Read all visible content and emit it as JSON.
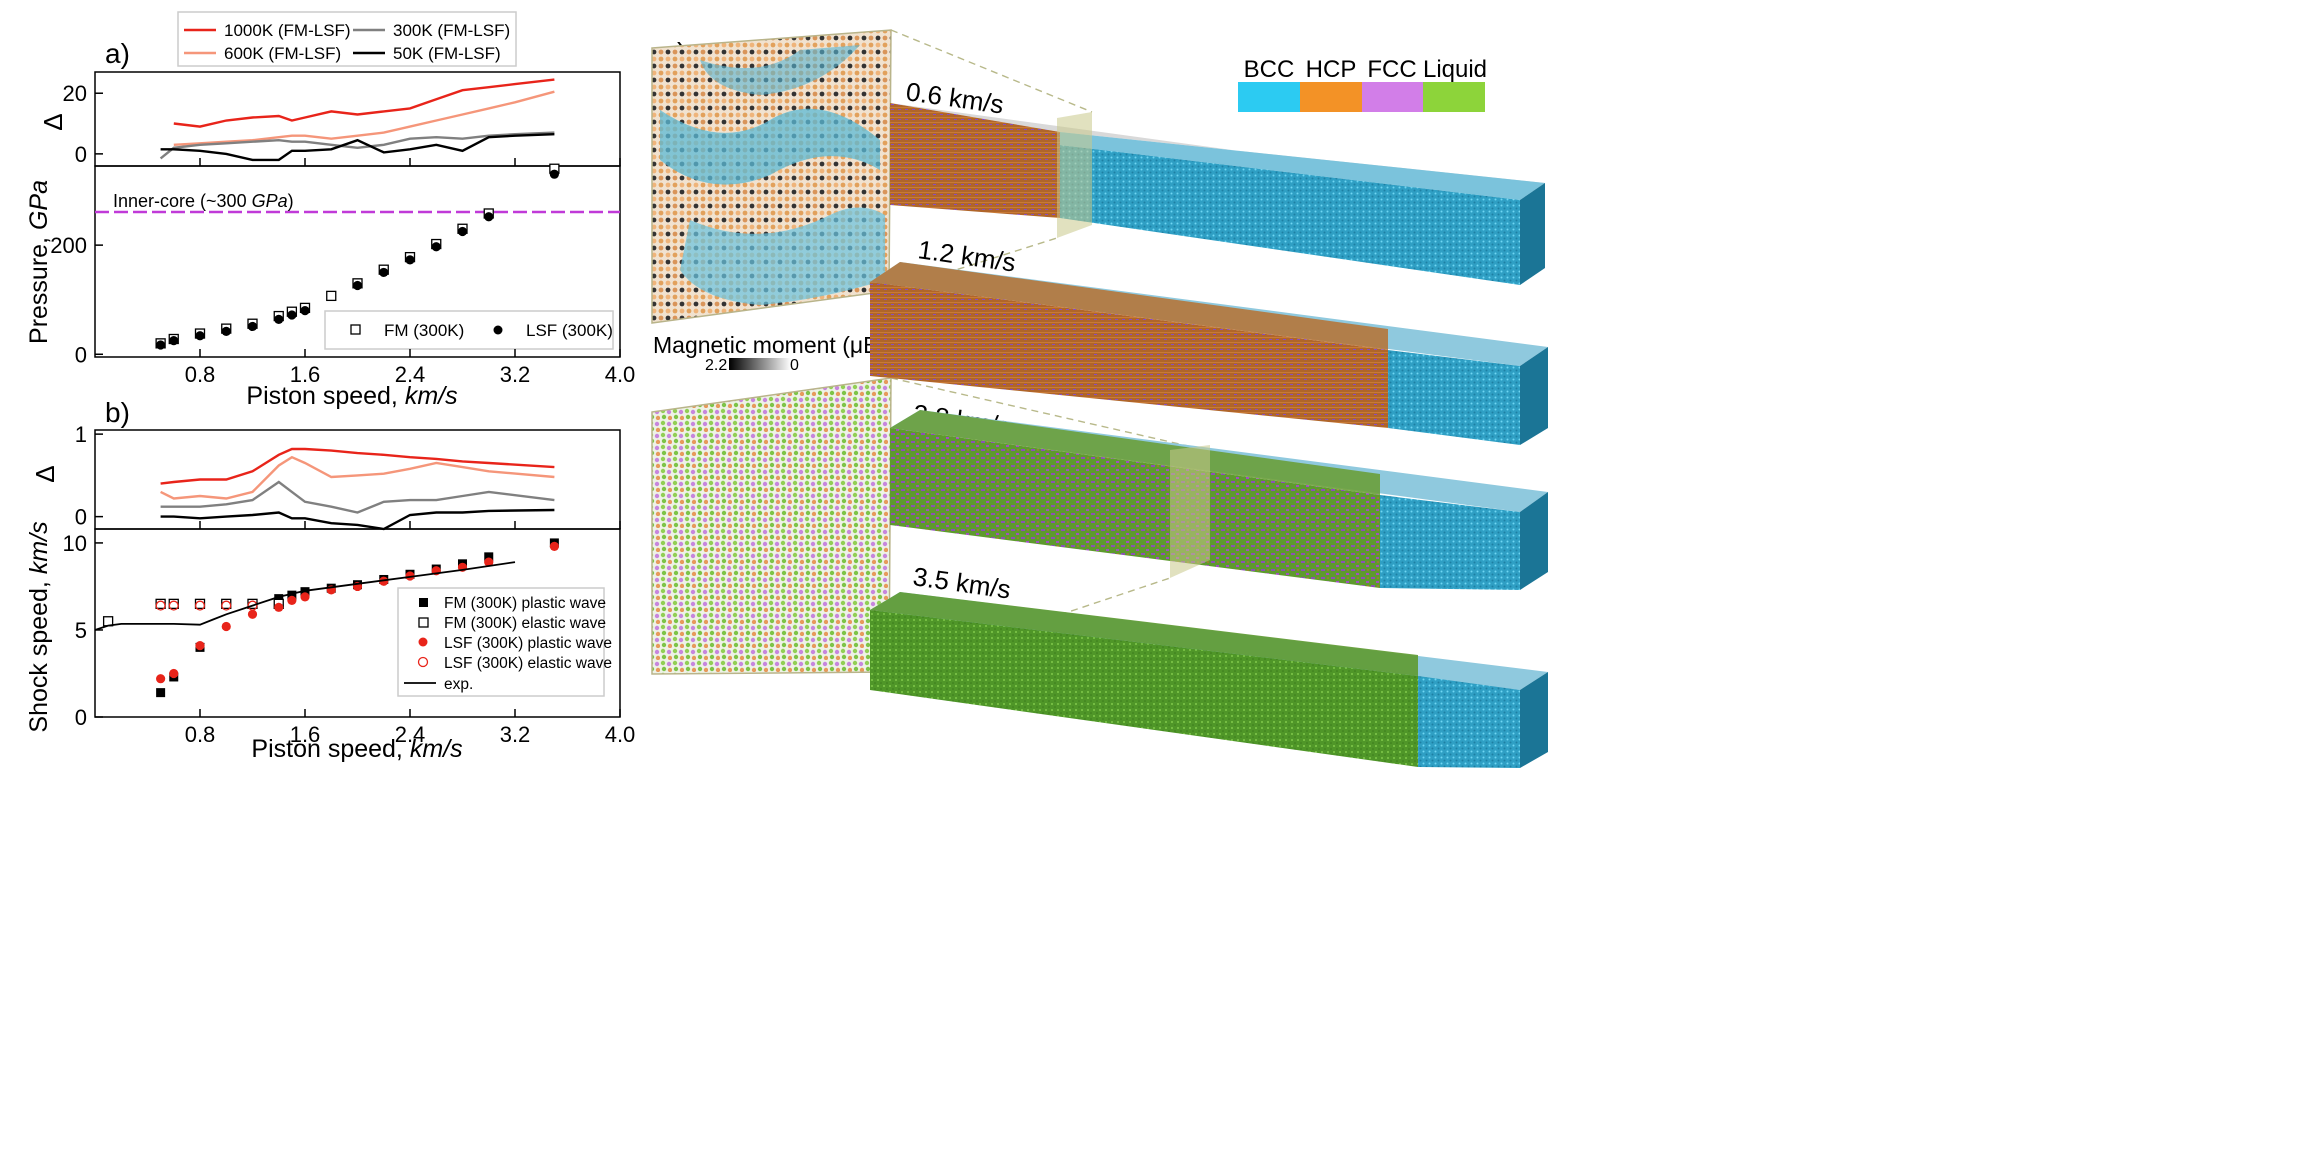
{
  "figure": {
    "panel_labels": {
      "a": "a)",
      "b": "b)",
      "c": "c)"
    }
  },
  "chart_data": [
    {
      "type": "line",
      "panel": "a-top",
      "ylabel": "Δ",
      "xlim": [
        0.0,
        4.0
      ],
      "ylim": [
        -4,
        27
      ],
      "yticks": [
        0,
        20
      ],
      "legend": {
        "placement": "above",
        "entries": [
          "1000K (FM-LSF)",
          "600K (FM-LSF)",
          "300K (FM-LSF)",
          "50K (FM-LSF)"
        ]
      },
      "colors": {
        "1000K (FM-LSF)": "#e8241a",
        "600K (FM-LSF)": "#f5967a",
        "300K (FM-LSF)": "#808080",
        "50K (FM-LSF)": "#000000"
      },
      "x": [
        0.5,
        0.6,
        0.8,
        1.0,
        1.2,
        1.4,
        1.5,
        1.6,
        1.8,
        2.0,
        2.2,
        2.4,
        2.6,
        2.8,
        3.0,
        3.2,
        3.5
      ],
      "series": [
        {
          "name": "1000K (FM-LSF)",
          "values": [
            null,
            10,
            9,
            11,
            12,
            12.5,
            11,
            12,
            14,
            13,
            14,
            15,
            18,
            21,
            22,
            23,
            24.5
          ]
        },
        {
          "name": "600K (FM-LSF)",
          "values": [
            null,
            3,
            3.5,
            4,
            4.5,
            5.5,
            6,
            6,
            5,
            6,
            7,
            9,
            11,
            13,
            15,
            17,
            20.5
          ]
        },
        {
          "name": "300K (FM-LSF)",
          "values": [
            -1.5,
            2,
            3,
            3.5,
            4,
            4.5,
            4,
            4,
            3,
            2,
            3,
            5,
            5.5,
            5,
            6,
            6.5,
            7
          ]
        },
        {
          "name": "50K (FM-LSF)",
          "values": [
            1.5,
            1.5,
            1,
            0,
            -2,
            -2,
            1,
            1,
            1.5,
            4.5,
            0.5,
            1.5,
            3,
            1,
            5.5,
            6,
            6.5
          ]
        }
      ]
    },
    {
      "type": "scatter",
      "panel": "a-bottom",
      "xlabel_text": "Piston speed, ",
      "xlabel_unit": "km/s",
      "ylabel_text": "Pressure, ",
      "ylabel_unit": "GPa",
      "xlim": [
        0.0,
        4.0
      ],
      "ylim": [
        -5,
        345
      ],
      "xticks": [
        0.8,
        1.6,
        2.4,
        3.2,
        4.0
      ],
      "yticks": [
        0,
        200
      ],
      "reference_line": {
        "y": 300,
        "label_text": "Inner-core (~300 ",
        "label_unit": "GPa",
        "label_close": ")",
        "color": "#c03ad8"
      },
      "legend": {
        "placement": "bottom-right",
        "entries": [
          "FM (300K)",
          "LSF (300K)"
        ]
      },
      "x": [
        0.5,
        0.6,
        0.8,
        1.0,
        1.2,
        1.4,
        1.5,
        1.6,
        1.8,
        2.0,
        2.2,
        2.4,
        2.6,
        2.8,
        3.0,
        3.5
      ],
      "series": [
        {
          "name": "FM (300K)",
          "marker": "open-square",
          "values": [
            20,
            28,
            38,
            47,
            56,
            70,
            78,
            85,
            107,
            130,
            155,
            178,
            202,
            230,
            258,
            340
          ]
        },
        {
          "name": "LSF (300K)",
          "marker": "filled-circle",
          "values": [
            17,
            25,
            34,
            42,
            51,
            64,
            72,
            80,
            null,
            126,
            150,
            173,
            197,
            225,
            252,
            330
          ]
        }
      ]
    },
    {
      "type": "line",
      "panel": "b-top",
      "ylabel": "Δ",
      "xlim": [
        0.0,
        4.0
      ],
      "ylim": [
        -0.15,
        1.05
      ],
      "yticks": [
        0,
        1
      ],
      "x": [
        0.5,
        0.6,
        0.8,
        1.0,
        1.2,
        1.4,
        1.5,
        1.6,
        1.8,
        2.0,
        2.2,
        2.4,
        2.6,
        2.8,
        3.0,
        3.5
      ],
      "series": [
        {
          "name": "1000K (FM-LSF)",
          "values": [
            0.4,
            0.42,
            0.45,
            0.45,
            0.55,
            0.75,
            0.82,
            0.82,
            0.8,
            0.77,
            0.75,
            0.72,
            0.7,
            0.67,
            0.65,
            0.6
          ]
        },
        {
          "name": "600K (FM-LSF)",
          "values": [
            0.3,
            0.22,
            0.25,
            0.22,
            0.3,
            0.62,
            0.72,
            0.65,
            0.48,
            0.5,
            0.52,
            0.58,
            0.65,
            0.6,
            0.55,
            0.48
          ]
        },
        {
          "name": "300K (FM-LSF)",
          "values": [
            0.12,
            0.12,
            0.12,
            0.15,
            0.2,
            0.42,
            0.3,
            0.18,
            0.12,
            0.05,
            0.18,
            0.2,
            0.2,
            0.25,
            0.3,
            0.2
          ]
        },
        {
          "name": "50K (FM-LSF)",
          "values": [
            0.0,
            0.0,
            -0.02,
            0.0,
            0.02,
            0.05,
            -0.02,
            -0.02,
            -0.08,
            -0.1,
            -0.15,
            0.02,
            0.05,
            0.05,
            0.07,
            0.08
          ]
        }
      ]
    },
    {
      "type": "scatter",
      "panel": "b-bottom",
      "xlabel_text": "Piston speed, ",
      "xlabel_unit": "km/s",
      "ylabel_text": "Shock speed, ",
      "ylabel_unit": "km/s",
      "xlim": [
        0.0,
        4.0
      ],
      "ylim": [
        0,
        10.8
      ],
      "xticks": [
        0.8,
        1.6,
        2.4,
        3.2,
        4.0
      ],
      "yticks": [
        0,
        5,
        10
      ],
      "legend": {
        "placement": "bottom-right",
        "entries": [
          "FM (300K) plastic wave",
          "FM (300K) elastic wave",
          "LSF (300K) plastic wave",
          "LSF (300K) elastic wave",
          "exp."
        ]
      },
      "series": [
        {
          "name": "FM (300K) plastic wave",
          "marker": "filled-square",
          "color": "#000000",
          "x": [
            0.5,
            0.6,
            0.8,
            1.4,
            1.5,
            1.6,
            1.8,
            2.0,
            2.2,
            2.4,
            2.6,
            2.8,
            3.0,
            3.5
          ],
          "values": [
            1.4,
            2.3,
            4.0,
            6.8,
            7.0,
            7.2,
            7.4,
            7.6,
            7.9,
            8.2,
            8.5,
            8.8,
            9.2,
            10.0
          ]
        },
        {
          "name": "FM (300K) elastic wave",
          "marker": "open-square",
          "color": "#000000",
          "x": [
            0.1,
            0.5,
            0.6,
            0.8,
            1.0,
            1.2,
            1.4
          ],
          "values": [
            5.5,
            6.5,
            6.5,
            6.5,
            6.5,
            6.5,
            6.5
          ]
        },
        {
          "name": "LSF (300K) plastic wave",
          "marker": "filled-circle",
          "color": "#e8241a",
          "x": [
            0.5,
            0.6,
            0.8,
            1.0,
            1.2,
            1.4,
            1.5,
            1.6,
            1.8,
            2.0,
            2.2,
            2.4,
            2.6,
            2.8,
            3.0,
            3.5
          ],
          "values": [
            2.2,
            2.5,
            4.1,
            5.2,
            5.9,
            6.3,
            6.7,
            6.9,
            7.3,
            7.5,
            7.8,
            8.1,
            8.4,
            8.6,
            8.9,
            9.8
          ]
        },
        {
          "name": "LSF (300K) elastic wave",
          "marker": "open-circle",
          "color": "#e8241a",
          "x": [
            0.5,
            0.6,
            0.8,
            1.0,
            1.2
          ],
          "values": [
            6.4,
            6.4,
            6.4,
            6.4,
            6.4
          ]
        },
        {
          "name": "exp.",
          "marker": "line",
          "color": "#000000",
          "x": [
            0.0,
            0.1,
            0.2,
            0.6,
            0.8,
            0.9,
            1.0,
            1.2,
            1.4,
            1.6,
            1.8,
            2.0,
            2.4,
            2.8,
            3.2
          ],
          "values": [
            5.0,
            5.25,
            5.35,
            5.35,
            5.3,
            5.6,
            5.9,
            6.4,
            6.9,
            7.25,
            7.45,
            7.65,
            8.05,
            8.45,
            8.9
          ]
        }
      ]
    }
  ],
  "panel_c": {
    "phase_legend": [
      {
        "label": "BCC",
        "color": "#2ccbf2"
      },
      {
        "label": "HCP",
        "color": "#f39226"
      },
      {
        "label": "FCC",
        "color": "#d27ee8"
      },
      {
        "label": "Liquid",
        "color": "#8dd43a"
      }
    ],
    "colorbar": {
      "title": "Magnetic moment (μB)",
      "max_label": "2.2",
      "min_label": "0"
    },
    "bars": [
      {
        "label": "0.6 km/s",
        "phases": [
          "HCP",
          "BCC"
        ],
        "fractions": [
          0.26,
          0.74
        ]
      },
      {
        "label": "1.2 km/s",
        "phases": [
          "HCP",
          "BCC"
        ],
        "fractions": [
          0.76,
          0.24
        ]
      },
      {
        "label": "2.8 km/s",
        "phases": [
          "Liquid",
          "BCC"
        ],
        "fractions": [
          0.8,
          0.2
        ]
      },
      {
        "label": "3.5 km/s",
        "phases": [
          "Liquid",
          "BCC"
        ],
        "fractions": [
          0.81,
          0.19
        ]
      }
    ]
  }
}
